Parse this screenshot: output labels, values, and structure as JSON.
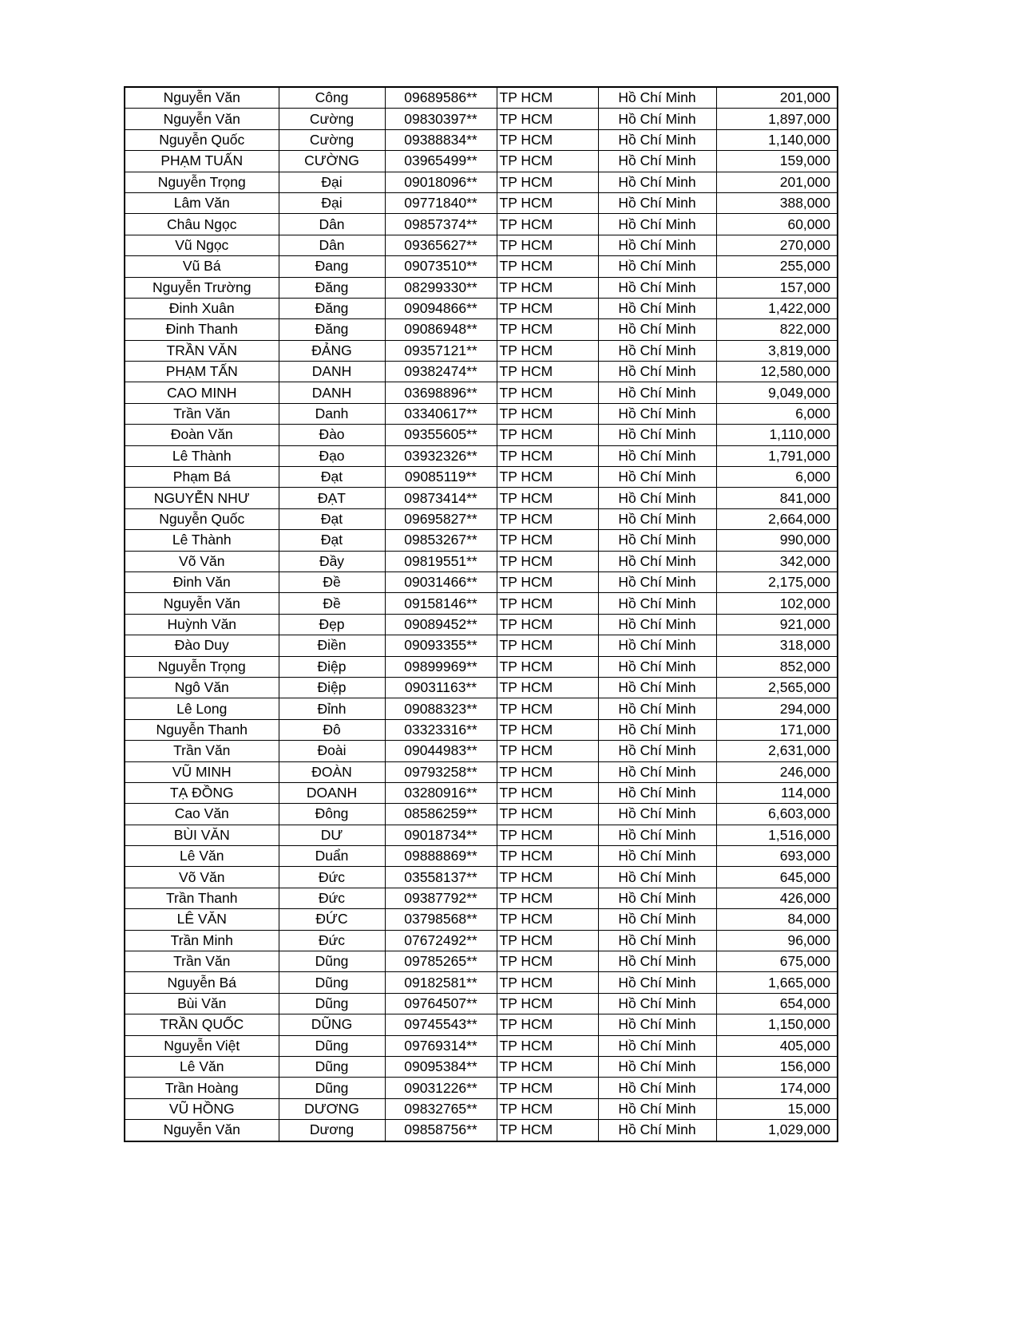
{
  "rows": [
    [
      "Nguyễn Văn",
      "Công",
      "09689586**",
      "TP HCM",
      "Hồ Chí Minh",
      "201,000"
    ],
    [
      "Nguyễn Văn",
      "Cường",
      "09830397**",
      "TP HCM",
      "Hồ Chí Minh",
      "1,897,000"
    ],
    [
      "Nguyễn Quốc",
      "Cường",
      "09388834**",
      "TP HCM",
      "Hồ Chí Minh",
      "1,140,000"
    ],
    [
      "PHẠM TUẤN",
      "CƯỜNG",
      "03965499**",
      "TP HCM",
      "Hồ Chí Minh",
      "159,000"
    ],
    [
      "Nguyễn Trọng",
      "Đại",
      "09018096**",
      "TP HCM",
      "Hồ Chí Minh",
      "201,000"
    ],
    [
      "Lâm Văn",
      "Đại",
      "09771840**",
      "TP HCM",
      "Hồ Chí Minh",
      "388,000"
    ],
    [
      "Châu  Ngọc",
      "Dân",
      "09857374**",
      "TP HCM",
      "Hồ Chí Minh",
      "60,000"
    ],
    [
      "Vũ Ngọc",
      "Dân",
      "09365627**",
      "TP HCM",
      "Hồ Chí Minh",
      "270,000"
    ],
    [
      "Vũ Bá",
      "Đang",
      "09073510**",
      "TP HCM",
      "Hồ Chí Minh",
      "255,000"
    ],
    [
      "Nguyễn Trường",
      "Đăng",
      "08299330**",
      "TP HCM",
      "Hồ Chí Minh",
      "157,000"
    ],
    [
      "Đinh Xuân",
      "Đăng",
      "09094866**",
      "TP HCM",
      "Hồ Chí Minh",
      "1,422,000"
    ],
    [
      "Đinh Thanh",
      "Đăng",
      "09086948**",
      "TP HCM",
      "Hồ Chí Minh",
      "822,000"
    ],
    [
      "TRẦN VĂN",
      "ĐẢNG",
      "09357121**",
      "TP HCM",
      "Hồ Chí Minh",
      "3,819,000"
    ],
    [
      "PHẠM TẤN",
      "DANH",
      "09382474**",
      "TP HCM",
      "Hồ Chí Minh",
      "12,580,000"
    ],
    [
      "CAO MINH",
      "DANH",
      "03698896**",
      "TP HCM",
      "Hồ Chí Minh",
      "9,049,000"
    ],
    [
      "Trần Văn",
      "Danh",
      "03340617**",
      "TP HCM",
      "Hồ Chí Minh",
      "6,000"
    ],
    [
      "Đoàn Văn",
      "Đào",
      "09355605**",
      "TP HCM",
      "Hồ Chí Minh",
      "1,110,000"
    ],
    [
      "Lê  Thành",
      "Đạo",
      "03932326**",
      "TP HCM",
      "Hồ Chí Minh",
      "1,791,000"
    ],
    [
      "Phạm Bá",
      "Đạt",
      "09085119**",
      "TP HCM",
      "Hồ Chí Minh",
      "6,000"
    ],
    [
      "NGUYỄN NHƯ",
      "ĐẠT",
      "09873414**",
      "TP HCM",
      "Hồ Chí Minh",
      "841,000"
    ],
    [
      "Nguyễn Quốc",
      "Đạt",
      "09695827**",
      "TP HCM",
      "Hồ Chí Minh",
      "2,664,000"
    ],
    [
      "Lê Thành",
      "Đạt",
      "09853267**",
      "TP HCM",
      "Hồ Chí Minh",
      "990,000"
    ],
    [
      "Võ Văn",
      "Đầy",
      "09819551**",
      "TP HCM",
      "Hồ Chí Minh",
      "342,000"
    ],
    [
      "Đinh  Văn",
      "Đề",
      "09031466**",
      "TP HCM",
      "Hồ Chí Minh",
      "2,175,000"
    ],
    [
      "Nguyễn Văn",
      "Đề",
      "09158146**",
      "TP HCM",
      "Hồ Chí Minh",
      "102,000"
    ],
    [
      "Huỳnh Văn",
      "Đẹp",
      "09089452**",
      "TP HCM",
      "Hồ Chí Minh",
      "921,000"
    ],
    [
      "Đào Duy",
      "Điền",
      "09093355**",
      "TP HCM",
      "Hồ Chí Minh",
      "318,000"
    ],
    [
      "Nguyễn Trọng",
      "Điệp",
      "09899969**",
      "TP HCM",
      "Hồ Chí Minh",
      "852,000"
    ],
    [
      "Ngô Văn",
      "Điệp",
      "09031163**",
      "TP HCM",
      "Hồ Chí Minh",
      "2,565,000"
    ],
    [
      "Lê Long",
      "Đỉnh",
      "09088323**",
      "TP HCM",
      "Hồ Chí Minh",
      "294,000"
    ],
    [
      "Nguyễn Thanh",
      "Đô",
      "03323316**",
      "TP HCM",
      "Hồ Chí Minh",
      "171,000"
    ],
    [
      "Trần Văn",
      "Đoài",
      "09044983**",
      "TP HCM",
      "Hồ Chí Minh",
      "2,631,000"
    ],
    [
      "VŨ MINH",
      "ĐOÀN",
      "09793258**",
      "TP HCM",
      "Hồ Chí Minh",
      "246,000"
    ],
    [
      "TẠ ĐỒNG",
      "DOANH",
      "03280916**",
      "TP HCM",
      "Hồ Chí Minh",
      "114,000"
    ],
    [
      "Cao Văn",
      "Đông",
      "08586259**",
      "TP HCM",
      "Hồ Chí Minh",
      "6,603,000"
    ],
    [
      "BÙI VĂN",
      "DƯ",
      "09018734**",
      "TP HCM",
      "Hồ Chí Minh",
      "1,516,000"
    ],
    [
      "Lê Văn",
      "Duẩn",
      "09888869**",
      "TP HCM",
      "Hồ Chí Minh",
      "693,000"
    ],
    [
      "Võ Văn",
      "Đức",
      "03558137**",
      "TP HCM",
      "Hồ Chí Minh",
      "645,000"
    ],
    [
      "Trần Thanh",
      "Đức",
      "09387792**",
      "TP HCM",
      "Hồ Chí Minh",
      "426,000"
    ],
    [
      "LÊ VĂN",
      "ĐỨC",
      "03798568**",
      "TP HCM",
      "Hồ Chí Minh",
      "84,000"
    ],
    [
      "Trần Minh",
      "Đức",
      "07672492**",
      "TP HCM",
      "Hồ Chí Minh",
      "96,000"
    ],
    [
      "Trần Văn",
      "Dũng",
      "09785265**",
      "TP HCM",
      "Hồ Chí Minh",
      "675,000"
    ],
    [
      "Nguyễn Bá",
      "Dũng",
      "09182581**",
      "TP HCM",
      "Hồ Chí Minh",
      "1,665,000"
    ],
    [
      "Bùi Văn",
      "Dũng",
      "09764507**",
      "TP HCM",
      "Hồ Chí Minh",
      "654,000"
    ],
    [
      "TRẦN QUỐC",
      "DŨNG",
      "09745543**",
      "TP HCM",
      "Hồ Chí Minh",
      "1,150,000"
    ],
    [
      "Nguyễn Việt",
      "Dũng",
      "09769314**",
      "TP HCM",
      "Hồ Chí Minh",
      "405,000"
    ],
    [
      "Lê Văn",
      "Dũng",
      "09095384**",
      "TP HCM",
      "Hồ Chí Minh",
      "156,000"
    ],
    [
      "Trần Hoàng",
      "Dũng",
      "09031226**",
      "TP HCM",
      "Hồ Chí Minh",
      "174,000"
    ],
    [
      "VŨ HỒNG",
      "DƯƠNG",
      "09832765**",
      "TP HCM",
      "Hồ Chí Minh",
      "15,000"
    ],
    [
      "Nguyễn Văn",
      "Dương",
      "09858756**",
      "TP HCM",
      "Hồ Chí Minh",
      "1,029,000"
    ]
  ]
}
